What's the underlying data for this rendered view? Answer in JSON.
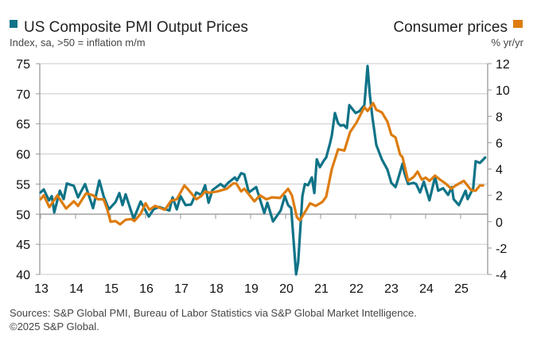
{
  "chart_data": {
    "type": "line",
    "title_left": "US Composite PMI Output Prices",
    "subtitle_left": "Index, sa, >50 = inflation m/m",
    "title_right": "Consumer prices",
    "subtitle_right": "% yr/yr",
    "x_range": [
      2013,
      2025.75
    ],
    "x_tick_values": [
      2013,
      2014,
      2015,
      2016,
      2017,
      2018,
      2019,
      2020,
      2021,
      2022,
      2023,
      2024,
      2025
    ],
    "x_tick_labels": [
      "13",
      "14",
      "15",
      "16",
      "17",
      "18",
      "19",
      "20",
      "21",
      "22",
      "23",
      "24",
      "25"
    ],
    "y_left_range": [
      40,
      75
    ],
    "y_left_ticks": [
      "75",
      "70",
      "65",
      "60",
      "55",
      "50",
      "45",
      "40"
    ],
    "y_right_range": [
      -4,
      12
    ],
    "y_right_ticks": [
      "12",
      "10",
      "8",
      "6",
      "4",
      "2",
      "0",
      "-2",
      "-4"
    ],
    "grid": true,
    "series": [
      {
        "name": "US Composite PMI Output Prices",
        "axis": "left",
        "color": "#0f7387",
        "x": [
          2013.0,
          2013.09,
          2013.24,
          2013.32,
          2013.39,
          2013.55,
          2013.66,
          2013.75,
          2013.95,
          2014.07,
          2014.27,
          2014.5,
          2014.68,
          2014.8,
          2014.95,
          2015.14,
          2015.25,
          2015.34,
          2015.43,
          2015.66,
          2015.86,
          2016.09,
          2016.23,
          2016.39,
          2016.68,
          2016.77,
          2016.89,
          2017.0,
          2017.14,
          2017.3,
          2017.45,
          2017.59,
          2017.7,
          2017.8,
          2017.91,
          2018.14,
          2018.25,
          2018.36,
          2018.55,
          2018.61,
          2018.73,
          2018.82,
          2018.95,
          2019.16,
          2019.39,
          2019.48,
          2019.64,
          2019.86,
          2019.98,
          2020.07,
          2020.16,
          2020.3,
          2020.36,
          2020.48,
          2020.55,
          2020.64,
          2020.75,
          2020.82,
          2020.89,
          2020.98,
          2021.09,
          2021.16,
          2021.27,
          2021.32,
          2021.41,
          2021.5,
          2021.57,
          2021.66,
          2021.75,
          2021.82,
          2022.0,
          2022.11,
          2022.25,
          2022.34,
          2022.41,
          2022.48,
          2022.59,
          2022.75,
          2022.91,
          2023.02,
          2023.14,
          2023.2,
          2023.34,
          2023.39,
          2023.5,
          2023.66,
          2023.73,
          2023.84,
          2023.95,
          2024.11,
          2024.27,
          2024.36,
          2024.5,
          2024.64,
          2024.75,
          2024.8,
          2024.95,
          2025.14,
          2025.2,
          2025.36,
          2025.43,
          2025.55,
          2025.7
        ],
        "y": [
          53.6,
          54.1,
          52.3,
          53.0,
          50.3,
          53.9,
          52.5,
          55.1,
          54.7,
          52.8,
          55.0,
          51.0,
          55.6,
          53.0,
          50.8,
          52.0,
          53.5,
          51.5,
          53.3,
          49.2,
          52.1,
          49.6,
          50.8,
          51.2,
          50.6,
          52.8,
          50.8,
          53.0,
          51.5,
          51.6,
          53.6,
          53.2,
          54.8,
          51.9,
          54.0,
          55.0,
          54.5,
          55.2,
          56.1,
          55.6,
          56.8,
          56.6,
          53.6,
          54.5,
          50.2,
          51.9,
          48.8,
          50.6,
          53.0,
          51.5,
          51.0,
          40.0,
          42.0,
          53.0,
          55.0,
          54.8,
          56.1,
          53.5,
          59.1,
          57.8,
          58.9,
          59.4,
          61.8,
          63.1,
          66.8,
          65.1,
          64.7,
          64.8,
          64.3,
          68.1,
          66.8,
          67.1,
          68.1,
          74.6,
          69.7,
          66.1,
          61.5,
          59.1,
          57.4,
          55.2,
          54.5,
          55.6,
          58.4,
          56.9,
          55.0,
          55.2,
          55.0,
          53.6,
          55.4,
          52.3,
          56.2,
          53.9,
          54.3,
          53.2,
          54.5,
          52.5,
          51.5,
          53.9,
          52.5,
          54.3,
          58.8,
          58.5,
          59.4
        ]
      },
      {
        "name": "Consumer prices",
        "axis": "right",
        "color": "#dd7c0e",
        "x": [
          2013.0,
          2013.09,
          2013.25,
          2013.48,
          2013.73,
          2013.95,
          2014.07,
          2014.3,
          2014.5,
          2014.64,
          2014.8,
          2014.91,
          2015.0,
          2015.14,
          2015.27,
          2015.43,
          2015.59,
          2015.68,
          2015.86,
          2016.0,
          2016.11,
          2016.27,
          2016.55,
          2016.73,
          2016.89,
          2017.11,
          2017.23,
          2017.45,
          2017.59,
          2017.7,
          2017.82,
          2018.05,
          2018.32,
          2018.5,
          2018.59,
          2018.73,
          2018.82,
          2019.11,
          2019.27,
          2019.45,
          2019.61,
          2019.84,
          2020.07,
          2020.18,
          2020.32,
          2020.41,
          2020.59,
          2020.7,
          2020.86,
          2021.05,
          2021.16,
          2021.32,
          2021.5,
          2021.68,
          2021.84,
          2022.02,
          2022.25,
          2022.34,
          2022.5,
          2022.59,
          2022.75,
          2022.91,
          2023.02,
          2023.14,
          2023.27,
          2023.34,
          2023.5,
          2023.66,
          2023.77,
          2023.89,
          2024.0,
          2024.11,
          2024.27,
          2024.41,
          2024.57,
          2024.73,
          2024.86,
          2025.09,
          2025.3,
          2025.43,
          2025.55,
          2025.64
        ],
        "y": [
          1.7,
          2.0,
          1.1,
          2.0,
          1.0,
          1.55,
          1.2,
          2.15,
          2.0,
          1.7,
          1.7,
          0.9,
          0.0,
          0.05,
          -0.2,
          0.15,
          0.2,
          0.05,
          0.6,
          1.4,
          0.9,
          1.2,
          0.9,
          1.6,
          1.7,
          2.75,
          2.4,
          1.7,
          1.95,
          2.3,
          2.2,
          2.3,
          2.5,
          2.9,
          2.9,
          2.3,
          2.5,
          1.55,
          2.0,
          1.7,
          1.85,
          1.8,
          2.5,
          2.0,
          0.35,
          0.1,
          0.9,
          1.4,
          1.2,
          1.5,
          1.9,
          4.0,
          5.5,
          5.4,
          6.8,
          7.5,
          8.7,
          8.4,
          9.0,
          8.5,
          8.3,
          7.6,
          6.6,
          6.4,
          5.1,
          4.9,
          3.1,
          3.4,
          3.8,
          3.2,
          3.35,
          3.1,
          3.5,
          3.2,
          2.9,
          2.5,
          2.75,
          3.1,
          2.4,
          2.35,
          2.75,
          2.75
        ]
      }
    ]
  },
  "footer": {
    "sources": "Sources: S&P Global PMI, Bureau of Labor Statistics via S&P Global Market Intelligence.",
    "copyright": "©2025 S&P Global."
  }
}
